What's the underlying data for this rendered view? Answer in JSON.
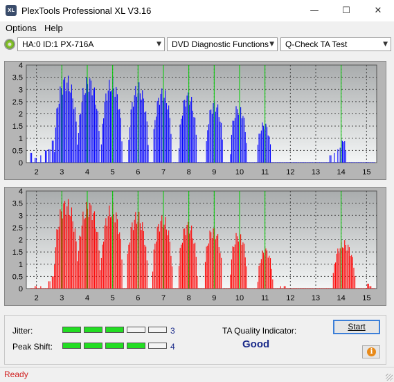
{
  "window": {
    "title": "PlexTools Professional XL V3.16",
    "icon_text": "XL"
  },
  "menu": {
    "items": [
      "Options",
      "Help"
    ]
  },
  "toolbar": {
    "drive": "HA:0 ID:1  PX-716A",
    "function": "DVD Diagnostic Functions",
    "test": "Q-Check TA Test"
  },
  "colors": {
    "top_series": "#0000ff",
    "bottom_series": "#ff0000",
    "peak_lines": "#00cc00",
    "plot_bg_top": "#a9acad",
    "plot_bg_bottom": "#f4f6f6"
  },
  "chart_data": [
    {
      "type": "area",
      "title": "",
      "xlabel": "",
      "ylabel": "",
      "xlim": [
        1.6,
        15.4
      ],
      "ylim": [
        0,
        4
      ],
      "x_ticks": [
        "2",
        "3",
        "4",
        "5",
        "6",
        "7",
        "8",
        "9",
        "10",
        "11",
        "12",
        "13",
        "14",
        "15"
      ],
      "y_ticks": [
        "4",
        "3.5",
        "3",
        "2.5",
        "2",
        "1.5",
        "1",
        "0.5",
        "0"
      ],
      "peak_lines": [
        3,
        4,
        5,
        6,
        7,
        8,
        9,
        10,
        11,
        14
      ],
      "series": [
        {
          "color": "#0000ff",
          "humps": [
            {
              "center": 3.15,
              "height": 3.65,
              "width": 0.46
            },
            {
              "center": 4.05,
              "height": 3.6,
              "width": 0.44
            },
            {
              "center": 4.95,
              "height": 3.5,
              "width": 0.42
            },
            {
              "center": 6.0,
              "height": 3.3,
              "width": 0.4
            },
            {
              "center": 6.95,
              "height": 3.1,
              "width": 0.38
            },
            {
              "center": 7.95,
              "height": 2.95,
              "width": 0.36
            },
            {
              "center": 9.0,
              "height": 2.6,
              "width": 0.34
            },
            {
              "center": 9.95,
              "height": 2.45,
              "width": 0.33
            },
            {
              "center": 10.95,
              "height": 1.7,
              "width": 0.28
            },
            {
              "center": 14.05,
              "height": 1.05,
              "width": 0.14
            }
          ],
          "noise": [
            {
              "x": 1.78,
              "y": 0.4
            },
            {
              "x": 1.95,
              "y": 0.2
            },
            {
              "x": 2.15,
              "y": 0.3
            },
            {
              "x": 2.35,
              "y": 0.5
            },
            {
              "x": 2.5,
              "y": 0.55
            },
            {
              "x": 2.62,
              "y": 0.9
            },
            {
              "x": 13.55,
              "y": 0.3
            },
            {
              "x": 13.72,
              "y": 0.4
            },
            {
              "x": 13.85,
              "y": 0.55
            }
          ]
        }
      ]
    },
    {
      "type": "area",
      "title": "",
      "xlabel": "",
      "ylabel": "",
      "xlim": [
        1.6,
        15.4
      ],
      "ylim": [
        0,
        4
      ],
      "x_ticks": [
        "2",
        "3",
        "4",
        "5",
        "6",
        "7",
        "8",
        "9",
        "10",
        "11",
        "12",
        "13",
        "14",
        "15"
      ],
      "y_ticks": [
        "4",
        "3.5",
        "3",
        "2.5",
        "2",
        "1.5",
        "1",
        "0.5",
        "0"
      ],
      "peak_lines": [
        3,
        4,
        5,
        6,
        7,
        8,
        9,
        10,
        11,
        14
      ],
      "series": [
        {
          "color": "#ff0000",
          "humps": [
            {
              "center": 3.15,
              "height": 3.75,
              "width": 0.48
            },
            {
              "center": 4.05,
              "height": 3.65,
              "width": 0.46
            },
            {
              "center": 4.95,
              "height": 3.5,
              "width": 0.44
            },
            {
              "center": 5.95,
              "height": 3.2,
              "width": 0.42
            },
            {
              "center": 6.95,
              "height": 3.05,
              "width": 0.4
            },
            {
              "center": 7.95,
              "height": 2.8,
              "width": 0.38
            },
            {
              "center": 8.95,
              "height": 2.6,
              "width": 0.36
            },
            {
              "center": 9.95,
              "height": 2.4,
              "width": 0.34
            },
            {
              "center": 11.0,
              "height": 1.7,
              "width": 0.3
            },
            {
              "center": 14.1,
              "height": 2.0,
              "width": 0.45
            }
          ],
          "noise": [
            {
              "x": 1.95,
              "y": 0.1
            },
            {
              "x": 2.15,
              "y": 0.1
            },
            {
              "x": 2.5,
              "y": 0.3
            },
            {
              "x": 2.62,
              "y": 0.5
            },
            {
              "x": 11.6,
              "y": 0.1
            },
            {
              "x": 11.75,
              "y": 0.1
            },
            {
              "x": 15.05,
              "y": 0.2
            },
            {
              "x": 15.15,
              "y": 0.1
            }
          ]
        }
      ]
    }
  ],
  "metrics": {
    "jitter": {
      "label": "Jitter:",
      "value": "3",
      "level": 3,
      "max": 5
    },
    "peak_shift": {
      "label": "Peak Shift:",
      "value": "4",
      "level": 4,
      "max": 5
    }
  },
  "quality": {
    "label": "TA Quality Indicator:",
    "value": "Good"
  },
  "buttons": {
    "start": "Start",
    "info_icon": "info-icon"
  },
  "status": "Ready"
}
